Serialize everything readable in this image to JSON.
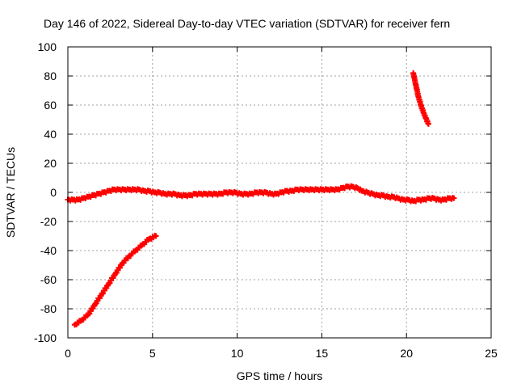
{
  "chart_data": {
    "type": "scatter",
    "title": "Day 146 of 2022, Sidereal Day-to-day VTEC variation (SDTVAR) for receiver fern",
    "xlabel": "GPS time / hours",
    "ylabel": "SDTVAR / TECUs",
    "xlim": [
      0,
      25
    ],
    "ylim": [
      -100,
      100
    ],
    "xticks": [
      0,
      5,
      10,
      15,
      20,
      25
    ],
    "yticks": [
      -100,
      -80,
      -60,
      -40,
      -20,
      0,
      20,
      40,
      60,
      80,
      100
    ],
    "grid": true,
    "color": "#ff0000",
    "series": [
      {
        "x": [
          0.4,
          0.8,
          1.2,
          1.6,
          2.0,
          2.4,
          2.8,
          3.2,
          3.6,
          4.0,
          4.4,
          4.8,
          5.2
        ],
        "values": [
          -91,
          -88,
          -84,
          -77,
          -70,
          -63,
          -56,
          -49,
          -44,
          -40,
          -36,
          -32,
          -30
        ]
      },
      {
        "x": [
          0.0,
          0.3,
          0.6,
          0.9,
          1.2,
          1.5,
          1.8,
          2.1,
          2.4,
          2.7,
          3.0,
          3.3,
          3.6,
          3.9,
          4.2,
          4.5,
          4.8,
          5.1,
          5.4,
          5.7,
          6.0,
          6.3,
          6.6,
          6.9,
          7.2,
          7.5,
          7.8,
          8.1,
          8.4,
          8.7,
          9.0,
          9.3,
          9.6,
          9.9,
          10.2,
          10.5,
          10.8,
          11.1,
          11.4,
          11.7,
          12.0,
          12.3,
          12.6,
          12.9,
          13.2,
          13.5,
          13.8,
          14.1,
          14.4,
          14.7,
          15.0,
          15.3,
          15.6,
          15.9,
          16.2,
          16.5,
          16.8,
          17.1,
          17.4,
          17.7,
          18.0,
          18.3,
          18.6,
          18.9,
          19.2,
          19.5,
          19.8,
          20.1,
          20.4,
          20.7,
          21.0,
          21.3,
          21.6,
          21.9,
          22.2,
          22.5,
          22.8
        ],
        "values": [
          -5,
          -5,
          -5,
          -4,
          -3,
          -2,
          -1,
          0,
          1,
          2,
          2,
          2,
          2,
          2,
          2,
          1,
          1,
          0,
          0,
          -1,
          -1,
          -1,
          -2,
          -2,
          -2,
          -1,
          -1,
          -1,
          -1,
          -1,
          -1,
          0,
          0,
          0,
          -1,
          -1,
          -1,
          0,
          0,
          0,
          -1,
          -1,
          0,
          1,
          1,
          2,
          2,
          2,
          2,
          2,
          2,
          2,
          2,
          2,
          3,
          4,
          4,
          3,
          1,
          0,
          -1,
          -2,
          -2,
          -3,
          -3,
          -4,
          -5,
          -5,
          -6,
          -5,
          -5,
          -4,
          -4,
          -5,
          -5,
          -4,
          -4
        ]
      },
      {
        "x": [
          20.4,
          20.55,
          20.7,
          20.85,
          21.0,
          21.15,
          21.3
        ],
        "values": [
          82,
          74,
          66,
          60,
          55,
          51,
          47
        ]
      }
    ]
  }
}
